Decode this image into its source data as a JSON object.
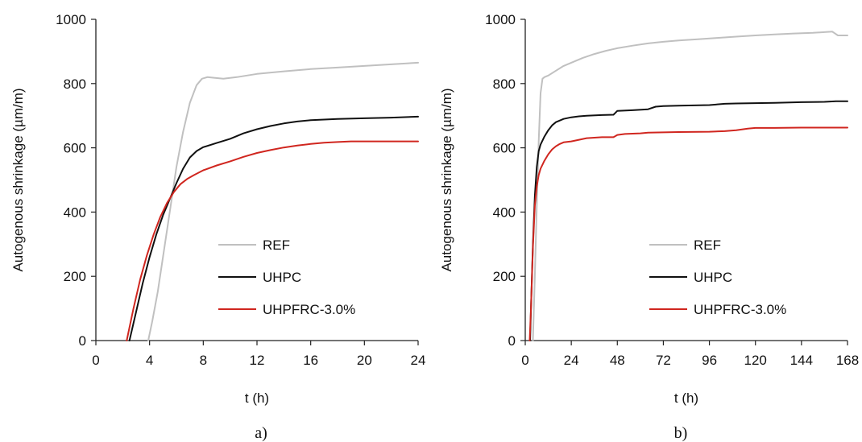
{
  "chart_data": [
    {
      "type": "line",
      "panel_label": "a)",
      "xlabel": "t (h)",
      "ylabel": "Autogenous shrinkage (µm/m)",
      "xlim": [
        0,
        24
      ],
      "ylim": [
        0,
        1000
      ],
      "xticks": [
        "0",
        "4",
        "8",
        "12",
        "16",
        "20",
        "24"
      ],
      "yticks": [
        "0",
        "200",
        "400",
        "600",
        "800",
        "1000"
      ],
      "xtick_values": [
        0,
        4,
        8,
        12,
        16,
        20,
        24
      ],
      "ytick_values": [
        0,
        200,
        400,
        600,
        800,
        1000
      ],
      "grid": false,
      "legend_position": "bottom-right",
      "series": [
        {
          "name": "REF",
          "color": "#c0c0c0",
          "x": [
            3.9,
            4.2,
            4.6,
            5.0,
            5.5,
            6.0,
            6.5,
            7.0,
            7.5,
            7.9,
            8.3,
            8.8,
            9.5,
            10.5,
            12,
            14,
            16,
            18,
            20,
            22,
            24
          ],
          "y": [
            0,
            60,
            150,
            260,
            400,
            540,
            650,
            740,
            795,
            815,
            820,
            818,
            815,
            820,
            830,
            838,
            845,
            850,
            855,
            860,
            865
          ]
        },
        {
          "name": "UHPC",
          "color": "#111111",
          "x": [
            2.5,
            3.0,
            3.5,
            4.0,
            4.5,
            5.0,
            5.5,
            6.0,
            6.5,
            7.0,
            7.5,
            8.0,
            9.0,
            10.0,
            11.0,
            12.0,
            13.0,
            14.0,
            15.0,
            16.0,
            18.0,
            20.0,
            22.0,
            24.0
          ],
          "y": [
            0,
            90,
            180,
            260,
            330,
            390,
            440,
            490,
            535,
            570,
            590,
            602,
            615,
            628,
            645,
            658,
            668,
            676,
            682,
            686,
            690,
            692,
            694,
            697
          ]
        },
        {
          "name": "UHPFRC-3.0%",
          "color": "#d0261f",
          "x": [
            2.3,
            2.8,
            3.3,
            3.8,
            4.3,
            4.8,
            5.3,
            5.8,
            6.3,
            6.8,
            7.3,
            8.0,
            9.0,
            10.0,
            11.0,
            12.0,
            13.0,
            14.0,
            15.0,
            16.0,
            17.0,
            18.0,
            19.0,
            20.0,
            22.0,
            24.0
          ],
          "y": [
            0,
            100,
            190,
            265,
            330,
            385,
            428,
            462,
            487,
            503,
            515,
            530,
            545,
            558,
            572,
            584,
            593,
            601,
            607,
            612,
            616,
            618,
            620,
            620,
            620,
            620
          ]
        }
      ]
    },
    {
      "type": "line",
      "panel_label": "b)",
      "xlabel": "t (h)",
      "ylabel": "Autogenous shrinkage (µm/m)",
      "xlim": [
        0,
        168
      ],
      "ylim": [
        0,
        1000
      ],
      "xticks": [
        "0",
        "24",
        "48",
        "72",
        "96",
        "120",
        "144",
        "168"
      ],
      "yticks": [
        "0",
        "200",
        "400",
        "600",
        "800",
        "1000"
      ],
      "xtick_values": [
        0,
        24,
        48,
        72,
        96,
        120,
        144,
        168
      ],
      "ytick_values": [
        0,
        200,
        400,
        600,
        800,
        1000
      ],
      "grid": false,
      "legend_position": "bottom-right",
      "series": [
        {
          "name": "REF",
          "color": "#c0c0c0",
          "x": [
            4,
            5,
            6,
            7,
            8,
            9,
            10,
            12,
            16,
            20,
            24,
            30,
            36,
            42,
            48,
            56,
            64,
            72,
            80,
            90,
            100,
            110,
            120,
            130,
            140,
            150,
            160,
            163,
            168
          ],
          "y": [
            0,
            200,
            420,
            620,
            770,
            815,
            820,
            825,
            840,
            855,
            865,
            880,
            892,
            902,
            910,
            918,
            925,
            930,
            934,
            938,
            942,
            946,
            950,
            953,
            956,
            958,
            962,
            950,
            950
          ]
        },
        {
          "name": "UHPC",
          "color": "#111111",
          "x": [
            2.5,
            3,
            4,
            5,
            6,
            7,
            8,
            10,
            12,
            14,
            16,
            18,
            20,
            24,
            28,
            32,
            40,
            46,
            48,
            56,
            64,
            68,
            72,
            80,
            96,
            104,
            110,
            120,
            130,
            144,
            156,
            162,
            168
          ],
          "y": [
            0,
            100,
            300,
            450,
            540,
            590,
            610,
            635,
            655,
            670,
            680,
            685,
            690,
            695,
            698,
            700,
            702,
            703,
            715,
            717,
            720,
            728,
            730,
            731,
            733,
            737,
            738,
            739,
            740,
            742,
            743,
            745,
            745
          ]
        },
        {
          "name": "UHPFRC-3.0%",
          "color": "#d0261f",
          "x": [
            2.3,
            3,
            4,
            5,
            6,
            7,
            8,
            10,
            12,
            14,
            16,
            18,
            20,
            24,
            28,
            32,
            40,
            46,
            48,
            52,
            60,
            64,
            72,
            80,
            96,
            104,
            110,
            116,
            120,
            130,
            144,
            156,
            168
          ],
          "y": [
            0,
            100,
            290,
            420,
            480,
            515,
            535,
            560,
            580,
            595,
            605,
            612,
            617,
            620,
            625,
            630,
            633,
            633,
            640,
            643,
            645,
            647,
            648,
            649,
            650,
            652,
            655,
            660,
            662,
            662,
            663,
            663,
            663
          ]
        }
      ]
    }
  ]
}
